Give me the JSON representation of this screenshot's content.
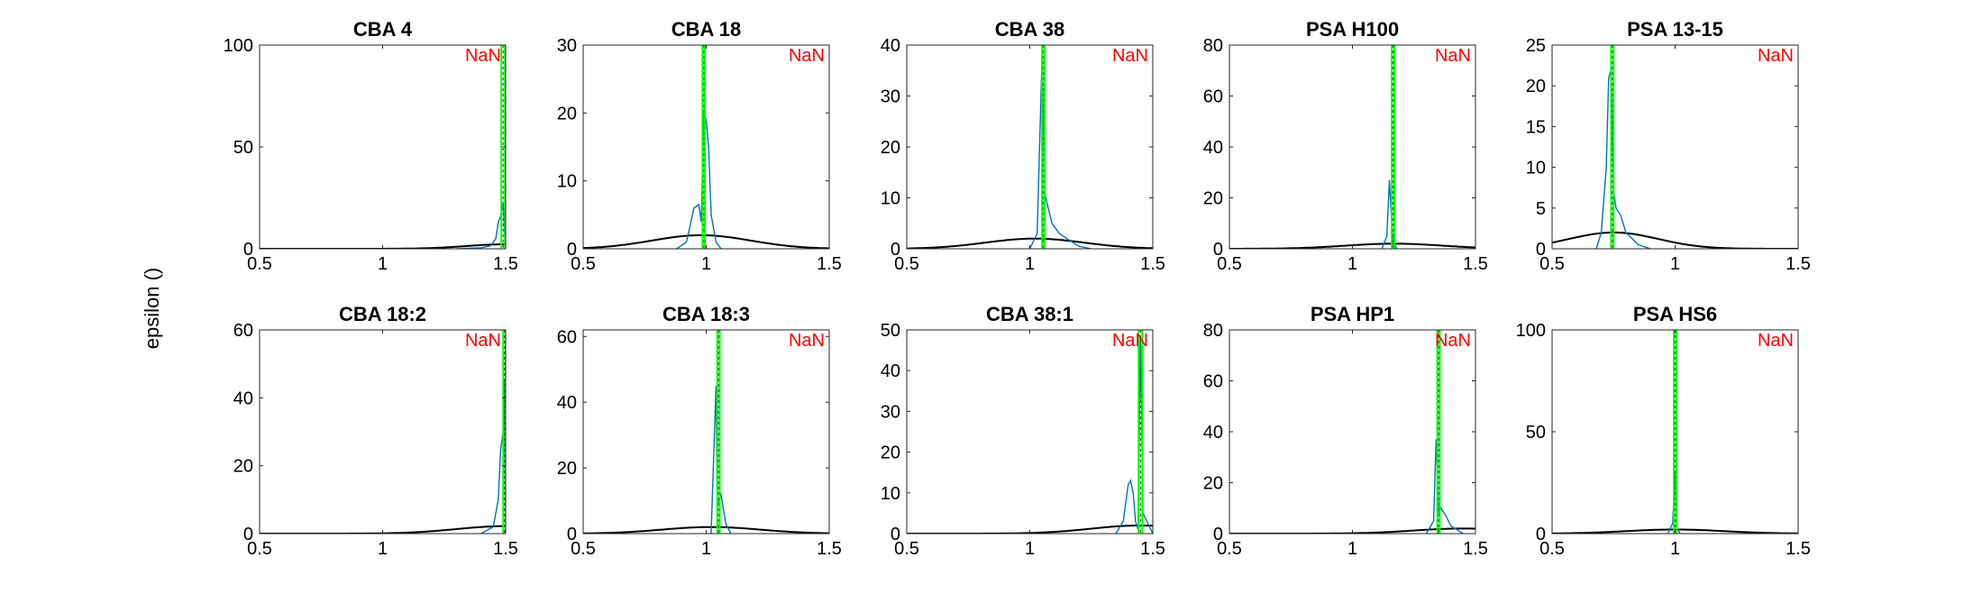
{
  "figure": {
    "ylabel": "epsilon ()"
  },
  "chart_data": [
    {
      "type": "line",
      "title": "CBA 4",
      "xlim": [
        0.5,
        1.5
      ],
      "ylim": [
        0,
        100
      ],
      "xticks": [
        "0.5",
        "1",
        "1.5"
      ],
      "yticks": [
        "0",
        "50",
        "100"
      ],
      "annotation": "NaN",
      "series": [
        {
          "color": "#000000",
          "shape": "bell",
          "peak_x": 1.5,
          "peak_y": 2.2,
          "sigma": 0.16
        },
        {
          "color": "#0072BD",
          "shape": "spikes",
          "points": [
            [
              1.3,
              0
            ],
            [
              1.4,
              0.5
            ],
            [
              1.44,
              1.5
            ],
            [
              1.46,
              5
            ],
            [
              1.47,
              13
            ],
            [
              1.48,
              16
            ],
            [
              1.49,
              22
            ],
            [
              1.495,
              10
            ],
            [
              1.5,
              0
            ]
          ]
        },
        {
          "color": "#00FF00",
          "shape": "vline",
          "x": 1.49,
          "width": 0.015
        }
      ]
    },
    {
      "type": "line",
      "title": "CBA 18",
      "xlim": [
        0.5,
        1.5
      ],
      "ylim": [
        0,
        30
      ],
      "xticks": [
        "0.5",
        "1",
        "1.5"
      ],
      "yticks": [
        "0",
        "10",
        "20",
        "30"
      ],
      "annotation": "NaN",
      "series": [
        {
          "color": "#000000",
          "shape": "bell",
          "peak_x": 0.98,
          "peak_y": 2,
          "sigma": 0.2
        },
        {
          "color": "#0072BD",
          "shape": "spikes",
          "points": [
            [
              0.88,
              0
            ],
            [
              0.92,
              1
            ],
            [
              0.95,
              6
            ],
            [
              0.97,
              6.5
            ],
            [
              0.98,
              4
            ],
            [
              0.99,
              20
            ],
            [
              1.0,
              19
            ],
            [
              1.01,
              15
            ],
            [
              1.02,
              5
            ],
            [
              1.04,
              1
            ],
            [
              1.06,
              0
            ]
          ]
        },
        {
          "color": "#00FF00",
          "shape": "vline",
          "x": 0.99,
          "width": 0.01
        }
      ]
    },
    {
      "type": "line",
      "title": "CBA 38",
      "xlim": [
        0.5,
        1.5
      ],
      "ylim": [
        0,
        40
      ],
      "xticks": [
        "0.5",
        "1",
        "1.5"
      ],
      "yticks": [
        "0",
        "10",
        "20",
        "30",
        "40"
      ],
      "annotation": "NaN",
      "series": [
        {
          "color": "#000000",
          "shape": "bell",
          "peak_x": 1.02,
          "peak_y": 2,
          "sigma": 0.2
        },
        {
          "color": "#0072BD",
          "shape": "spikes",
          "points": [
            [
              1.0,
              0
            ],
            [
              1.03,
              3
            ],
            [
              1.05,
              38
            ],
            [
              1.06,
              11
            ],
            [
              1.07,
              9
            ],
            [
              1.09,
              5
            ],
            [
              1.12,
              3
            ],
            [
              1.15,
              2
            ],
            [
              1.2,
              0.5
            ],
            [
              1.25,
              0
            ]
          ]
        },
        {
          "color": "#00FF00",
          "shape": "vline",
          "x": 1.055,
          "width": 0.01
        }
      ]
    },
    {
      "type": "line",
      "title": "PSA H100",
      "xlim": [
        0.5,
        1.5
      ],
      "ylim": [
        0,
        80
      ],
      "xticks": [
        "0.5",
        "1",
        "1.5"
      ],
      "yticks": [
        "0",
        "20",
        "40",
        "60",
        "80"
      ],
      "annotation": "NaN",
      "series": [
        {
          "color": "#000000",
          "shape": "bell",
          "peak_x": 1.17,
          "peak_y": 2,
          "sigma": 0.2
        },
        {
          "color": "#0072BD",
          "shape": "spikes",
          "points": [
            [
              1.12,
              0
            ],
            [
              1.14,
              5
            ],
            [
              1.15,
              27
            ],
            [
              1.16,
              10
            ],
            [
              1.165,
              3
            ],
            [
              1.18,
              0
            ]
          ]
        },
        {
          "color": "#00FF00",
          "shape": "vline",
          "x": 1.165,
          "width": 0.01
        }
      ]
    },
    {
      "type": "line",
      "title": "PSA 13-15",
      "xlim": [
        0.5,
        1.5
      ],
      "ylim": [
        0,
        25
      ],
      "xticks": [
        "0.5",
        "1",
        "1.5"
      ],
      "yticks": [
        "0",
        "5",
        "10",
        "15",
        "20",
        "25"
      ],
      "annotation": "NaN",
      "series": [
        {
          "color": "#000000",
          "shape": "bell",
          "peak_x": 0.75,
          "peak_y": 2,
          "sigma": 0.18
        },
        {
          "color": "#0072BD",
          "shape": "spikes",
          "points": [
            [
              0.68,
              0
            ],
            [
              0.7,
              2
            ],
            [
              0.72,
              10
            ],
            [
              0.73,
              21
            ],
            [
              0.74,
              22
            ],
            [
              0.75,
              7
            ],
            [
              0.76,
              5
            ],
            [
              0.78,
              4
            ],
            [
              0.8,
              2
            ],
            [
              0.85,
              0.5
            ],
            [
              0.9,
              0
            ]
          ]
        },
        {
          "color": "#00FF00",
          "shape": "vline",
          "x": 0.745,
          "width": 0.01
        }
      ]
    },
    {
      "type": "line",
      "title": "CBA 18:2",
      "xlim": [
        0.5,
        1.5
      ],
      "ylim": [
        0,
        60
      ],
      "xticks": [
        "0.5",
        "1",
        "1.5"
      ],
      "yticks": [
        "0",
        "20",
        "40",
        "60"
      ],
      "annotation": "NaN",
      "series": [
        {
          "color": "#000000",
          "shape": "bell",
          "peak_x": 1.5,
          "peak_y": 2.2,
          "sigma": 0.2
        },
        {
          "color": "#0072BD",
          "shape": "spikes",
          "points": [
            [
              1.4,
              0
            ],
            [
              1.45,
              2
            ],
            [
              1.47,
              10
            ],
            [
              1.48,
              25
            ],
            [
              1.49,
              30
            ],
            [
              1.495,
              45
            ],
            [
              1.5,
              0
            ]
          ]
        },
        {
          "color": "#00FF00",
          "shape": "vline",
          "x": 1.495,
          "width": 0.01
        }
      ]
    },
    {
      "type": "line",
      "title": "CBA 18:3",
      "xlim": [
        0.5,
        1.5
      ],
      "ylim": [
        0,
        62
      ],
      "xticks": [
        "0.5",
        "1",
        "1.5"
      ],
      "yticks": [
        "0",
        "20",
        "40",
        "60"
      ],
      "annotation": "NaN",
      "series": [
        {
          "color": "#000000",
          "shape": "bell",
          "peak_x": 1.02,
          "peak_y": 2,
          "sigma": 0.2
        },
        {
          "color": "#0072BD",
          "shape": "spikes",
          "points": [
            [
              1.02,
              0
            ],
            [
              1.04,
              45
            ],
            [
              1.045,
              9
            ],
            [
              1.06,
              12
            ],
            [
              1.08,
              3
            ],
            [
              1.1,
              0
            ]
          ]
        },
        {
          "color": "#00FF00",
          "shape": "vline",
          "x": 1.05,
          "width": 0.01
        }
      ]
    },
    {
      "type": "line",
      "title": "CBA 38:1",
      "xlim": [
        0.5,
        1.5
      ],
      "ylim": [
        0,
        50
      ],
      "xticks": [
        "0.5",
        "1",
        "1.5"
      ],
      "yticks": [
        "0",
        "10",
        "20",
        "30",
        "40",
        "50"
      ],
      "annotation": "NaN",
      "series": [
        {
          "color": "#000000",
          "shape": "bell",
          "peak_x": 1.45,
          "peak_y": 2,
          "sigma": 0.2
        },
        {
          "color": "#0072BD",
          "shape": "spikes",
          "points": [
            [
              1.35,
              0
            ],
            [
              1.38,
              3
            ],
            [
              1.4,
              12
            ],
            [
              1.41,
              13
            ],
            [
              1.42,
              10
            ],
            [
              1.43,
              3
            ],
            [
              1.44,
              1
            ],
            [
              1.45,
              48
            ],
            [
              1.46,
              5
            ],
            [
              1.5,
              0
            ]
          ]
        },
        {
          "color": "#00FF00",
          "shape": "vline",
          "x": 1.45,
          "width": 0.015
        }
      ]
    },
    {
      "type": "line",
      "title": "PSA HP1",
      "xlim": [
        0.5,
        1.5
      ],
      "ylim": [
        0,
        80
      ],
      "xticks": [
        "0.5",
        "1",
        "1.5"
      ],
      "yticks": [
        "0",
        "20",
        "40",
        "60",
        "80"
      ],
      "annotation": "NaN",
      "series": [
        {
          "color": "#000000",
          "shape": "bell",
          "peak_x": 1.45,
          "peak_y": 2,
          "sigma": 0.2
        },
        {
          "color": "#0072BD",
          "shape": "spikes",
          "points": [
            [
              1.3,
              0
            ],
            [
              1.33,
              5
            ],
            [
              1.34,
              37
            ],
            [
              1.35,
              8
            ],
            [
              1.36,
              10
            ],
            [
              1.38,
              7
            ],
            [
              1.4,
              3
            ],
            [
              1.45,
              0
            ]
          ]
        },
        {
          "color": "#00FF00",
          "shape": "vline",
          "x": 1.35,
          "width": 0.01
        }
      ]
    },
    {
      "type": "line",
      "title": "PSA HS6",
      "xlim": [
        0.5,
        1.5
      ],
      "ylim": [
        0,
        100
      ],
      "xticks": [
        "0.5",
        "1",
        "1.5"
      ],
      "yticks": [
        "0",
        "50",
        "100"
      ],
      "annotation": "NaN",
      "series": [
        {
          "color": "#000000",
          "shape": "bell",
          "peak_x": 1.0,
          "peak_y": 2,
          "sigma": 0.2
        },
        {
          "color": "#0072BD",
          "shape": "spikes",
          "points": [
            [
              0.97,
              0
            ],
            [
              0.99,
              5
            ],
            [
              1.0,
              31
            ],
            [
              1.005,
              3
            ],
            [
              1.02,
              0
            ]
          ]
        },
        {
          "color": "#00FF00",
          "shape": "vline",
          "x": 1.0,
          "width": 0.01
        }
      ]
    }
  ]
}
